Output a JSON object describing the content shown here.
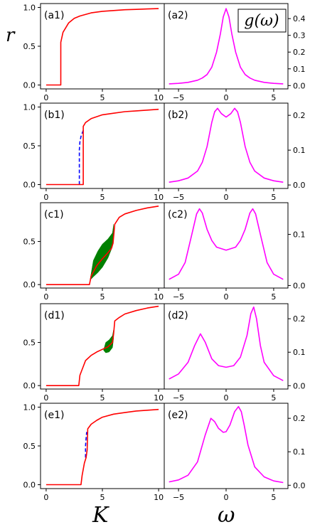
{
  "figure": {
    "ylabel_left": "r",
    "xlabel_left": "K",
    "xlabel_right": "ω",
    "right_title": "g(ω)"
  },
  "chart_data": [
    {
      "type": "line",
      "panel": "(a1)",
      "xlim": [
        -0.5,
        10.5
      ],
      "ylim": [
        -0.05,
        1.05
      ],
      "xticks": [
        0,
        5,
        10
      ],
      "yticks": [
        0.0,
        0.5,
        1.0
      ],
      "series": [
        {
          "color": "#ff0000",
          "style": "solid",
          "x": [
            0,
            1.3,
            1.3,
            1.5,
            2,
            2.5,
            3,
            4,
            5,
            6,
            7,
            8,
            9,
            10
          ],
          "y": [
            0,
            0,
            0.55,
            0.68,
            0.8,
            0.86,
            0.89,
            0.93,
            0.95,
            0.96,
            0.97,
            0.975,
            0.98,
            0.985
          ]
        }
      ]
    },
    {
      "type": "line",
      "panel": "(a2)",
      "xlim": [
        -6.5,
        6.5
      ],
      "ylim": [
        -0.02,
        0.49
      ],
      "xticks": [
        -5,
        0,
        5
      ],
      "yticks": [
        0.0,
        0.1,
        0.2,
        0.3,
        0.4
      ],
      "series": [
        {
          "color": "#ff00ff",
          "style": "solid",
          "x": [
            -6,
            -5,
            -4,
            -3,
            -2.5,
            -2,
            -1.5,
            -1,
            -0.6,
            -0.3,
            0,
            0.3,
            0.6,
            1,
            1.5,
            2,
            2.5,
            3,
            4,
            5,
            6
          ],
          "y": [
            0.01,
            0.013,
            0.019,
            0.032,
            0.045,
            0.066,
            0.11,
            0.2,
            0.31,
            0.41,
            0.46,
            0.41,
            0.31,
            0.2,
            0.11,
            0.066,
            0.045,
            0.032,
            0.019,
            0.013,
            0.01
          ]
        }
      ]
    },
    {
      "type": "line",
      "panel": "(b1)",
      "xlim": [
        -0.5,
        10.5
      ],
      "ylim": [
        -0.05,
        1.05
      ],
      "xticks": [
        0,
        5,
        10
      ],
      "yticks": [
        0.0,
        0.5,
        1.0
      ],
      "series": [
        {
          "color": "#0000ff",
          "style": "dashed",
          "x": [
            2.95,
            2.95,
            3.0,
            3.1,
            3.2,
            3.3
          ],
          "y": [
            0,
            0.45,
            0.55,
            0.62,
            0.66,
            0.7
          ]
        },
        {
          "color": "#ff0000",
          "style": "solid",
          "x": [
            0,
            3.3,
            3.3,
            3.5,
            4,
            5,
            6,
            7,
            8,
            9,
            10
          ],
          "y": [
            0,
            0,
            0.75,
            0.8,
            0.85,
            0.9,
            0.92,
            0.94,
            0.95,
            0.96,
            0.97
          ]
        }
      ]
    },
    {
      "type": "line",
      "panel": "(b2)",
      "xlim": [
        -6.5,
        6.5
      ],
      "ylim": [
        -0.01,
        0.235
      ],
      "xticks": [
        -5,
        0,
        5
      ],
      "yticks": [
        0.0,
        0.1,
        0.2
      ],
      "series": [
        {
          "color": "#ff00ff",
          "style": "solid",
          "x": [
            -6,
            -5,
            -4,
            -3,
            -2.5,
            -2,
            -1.5,
            -1.2,
            -0.9,
            -0.5,
            0,
            0.5,
            0.9,
            1.2,
            1.5,
            2,
            2.5,
            3,
            4,
            5,
            6
          ],
          "y": [
            0.008,
            0.012,
            0.02,
            0.04,
            0.065,
            0.11,
            0.18,
            0.21,
            0.22,
            0.205,
            0.195,
            0.205,
            0.22,
            0.21,
            0.18,
            0.11,
            0.065,
            0.04,
            0.02,
            0.012,
            0.008
          ]
        }
      ]
    },
    {
      "type": "line",
      "panel": "(c1)",
      "xlim": [
        -0.5,
        10.5
      ],
      "ylim": [
        -0.04,
        0.95
      ],
      "xticks": [
        0,
        5,
        10
      ],
      "yticks": [
        0.0,
        0.5
      ],
      "band": {
        "color": "#008000",
        "x": [
          3.9,
          4.2,
          4.6,
          5.0,
          5.5,
          5.9,
          6.0
        ],
        "lower": [
          0.05,
          0.09,
          0.14,
          0.2,
          0.31,
          0.44,
          0.6
        ],
        "upper": [
          0.05,
          0.28,
          0.39,
          0.47,
          0.53,
          0.6,
          0.7
        ]
      },
      "series": [
        {
          "color": "#ff0000",
          "style": "solid",
          "x": [
            0,
            3.85,
            4.0,
            4.5,
            5.0,
            5.5,
            5.8,
            5.95,
            6.1,
            6.5,
            7,
            8,
            9,
            10
          ],
          "y": [
            0,
            0,
            0.1,
            0.22,
            0.3,
            0.37,
            0.42,
            0.48,
            0.7,
            0.78,
            0.82,
            0.86,
            0.89,
            0.91
          ]
        }
      ]
    },
    {
      "type": "line",
      "panel": "(c2)",
      "xlim": [
        -6.5,
        6.5
      ],
      "ylim": [
        -0.005,
        0.162
      ],
      "xticks": [
        -5,
        0,
        5
      ],
      "yticks": [
        0.0,
        0.1
      ],
      "series": [
        {
          "color": "#ff00ff",
          "style": "solid",
          "x": [
            -6,
            -5,
            -4.3,
            -3.6,
            -3.1,
            -2.8,
            -2.5,
            -2,
            -1.5,
            -1,
            0,
            1,
            1.5,
            2,
            2.5,
            2.8,
            3.1,
            3.6,
            4.3,
            5,
            6
          ],
          "y": [
            0.012,
            0.022,
            0.045,
            0.1,
            0.14,
            0.15,
            0.142,
            0.11,
            0.088,
            0.075,
            0.069,
            0.075,
            0.088,
            0.11,
            0.142,
            0.15,
            0.14,
            0.1,
            0.045,
            0.022,
            0.012
          ]
        }
      ]
    },
    {
      "type": "line",
      "panel": "(d1)",
      "xlim": [
        -0.5,
        10.5
      ],
      "ylim": [
        -0.04,
        0.95
      ],
      "xticks": [
        0,
        5,
        10
      ],
      "yticks": [
        0.0,
        0.5
      ],
      "band": {
        "color": "#008000",
        "x": [
          5.1,
          5.3,
          5.6,
          5.9,
          6.0
        ],
        "lower": [
          0.41,
          0.38,
          0.39,
          0.44,
          0.55
        ],
        "upper": [
          0.41,
          0.5,
          0.53,
          0.58,
          0.65
        ]
      },
      "series": [
        {
          "color": "#ff0000",
          "style": "solid",
          "x": [
            0,
            2.9,
            3.0,
            3.5,
            4,
            4.5,
            5,
            5.5,
            5.9,
            6.0,
            6.1,
            6.5,
            7,
            8,
            9,
            10
          ],
          "y": [
            0,
            0,
            0.12,
            0.29,
            0.35,
            0.39,
            0.42,
            0.45,
            0.5,
            0.6,
            0.75,
            0.79,
            0.83,
            0.87,
            0.9,
            0.92
          ]
        }
      ]
    },
    {
      "type": "line",
      "panel": "(d2)",
      "xlim": [
        -6.5,
        6.5
      ],
      "ylim": [
        -0.01,
        0.245
      ],
      "xticks": [
        -5,
        0,
        5
      ],
      "yticks": [
        0.0,
        0.1,
        0.2
      ],
      "series": [
        {
          "color": "#ff00ff",
          "style": "solid",
          "x": [
            -6,
            -5,
            -4,
            -3.3,
            -2.7,
            -2.2,
            -1.5,
            -0.8,
            0,
            0.8,
            1.5,
            2.2,
            2.6,
            2.9,
            3.2,
            3.6,
            4,
            5,
            6
          ],
          "y": [
            0.02,
            0.035,
            0.07,
            0.12,
            0.155,
            0.13,
            0.08,
            0.06,
            0.055,
            0.06,
            0.085,
            0.15,
            0.215,
            0.235,
            0.2,
            0.12,
            0.07,
            0.03,
            0.015
          ]
        }
      ]
    },
    {
      "type": "line",
      "panel": "(e1)",
      "xlim": [
        -0.5,
        10.5
      ],
      "ylim": [
        -0.05,
        1.05
      ],
      "xticks": [
        0,
        5,
        10
      ],
      "yticks": [
        0.0,
        0.5,
        1.0
      ],
      "series": [
        {
          "color": "#0000ff",
          "style": "dashed",
          "x": [
            3.5,
            3.5,
            3.55,
            3.6
          ],
          "y": [
            0.35,
            0.5,
            0.6,
            0.68
          ]
        },
        {
          "color": "#ff0000",
          "style": "solid",
          "x": [
            0,
            3.1,
            3.2,
            3.4,
            3.55,
            3.65,
            3.7,
            4,
            4.5,
            5,
            6,
            7,
            8,
            9,
            10
          ],
          "y": [
            0,
            0,
            0.12,
            0.28,
            0.35,
            0.45,
            0.72,
            0.78,
            0.83,
            0.87,
            0.91,
            0.93,
            0.95,
            0.96,
            0.97
          ]
        }
      ]
    },
    {
      "type": "line",
      "panel": "(e2)",
      "xlim": [
        -6.5,
        6.5
      ],
      "ylim": [
        -0.01,
        0.245
      ],
      "xticks": [
        -5,
        0,
        5
      ],
      "yticks": [
        0.0,
        0.1,
        0.2
      ],
      "series": [
        {
          "color": "#ff00ff",
          "style": "solid",
          "x": [
            -6,
            -5,
            -4,
            -3,
            -2.2,
            -1.6,
            -1.2,
            -0.8,
            -0.3,
            0,
            0.4,
            0.9,
            1.3,
            1.6,
            1.9,
            2.3,
            3,
            4,
            5,
            6
          ],
          "y": [
            0.01,
            0.016,
            0.03,
            0.07,
            0.15,
            0.2,
            0.19,
            0.17,
            0.158,
            0.16,
            0.18,
            0.22,
            0.235,
            0.22,
            0.18,
            0.12,
            0.055,
            0.025,
            0.013,
            0.008
          ]
        }
      ]
    }
  ]
}
